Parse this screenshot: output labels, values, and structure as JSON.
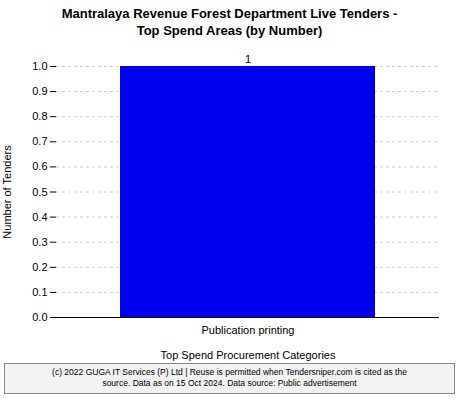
{
  "chart_data": {
    "type": "bar",
    "title": "Mantralaya Revenue Forest Department Live Tenders -\nTop Spend Areas (by Number)",
    "categories": [
      "Publication printing"
    ],
    "values": [
      1
    ],
    "color": "#0000EE",
    "xlabel": "Top Spend Procurement Categories",
    "ylabel": "Number of Tenders",
    "ylim": [
      0,
      1.0
    ],
    "yticks": [
      {
        "value": 0.0,
        "label": "0.0"
      },
      0.1,
      0.2,
      0.3,
      0.4,
      0.5,
      0.6,
      0.7,
      0.8,
      0.9,
      {
        "value": 1.0,
        "label": "1.0"
      }
    ],
    "grid": true,
    "data_labels": true,
    "annotations": [
      "(c) 2022 GUGA IT Services (P) Ltd | Reuse is permitted when Tendersniper.com is cited as the",
      "source. Data as on 15 Oct 2024. Data source: Public advertisement"
    ]
  }
}
